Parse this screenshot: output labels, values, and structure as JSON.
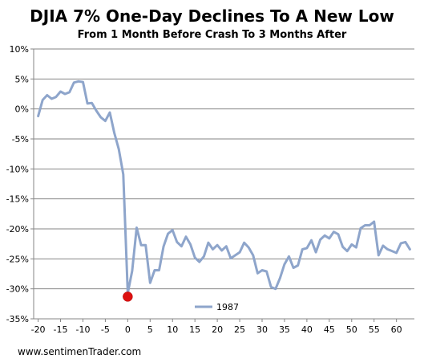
{
  "chart_data": {
    "type": "line",
    "title": "DJIA 7% One-Day Declines To A New Low",
    "subtitle": "From 1 Month Before Crash To 3 Months After",
    "xlabel": "",
    "ylabel": "",
    "xlim": [
      -21,
      64
    ],
    "ylim": [
      -35,
      10
    ],
    "x_ticks": [
      -20,
      -15,
      -10,
      -5,
      0,
      5,
      10,
      15,
      20,
      25,
      30,
      35,
      40,
      45,
      50,
      55,
      60
    ],
    "x_tick_labels": [
      "-20",
      "-15",
      "-10",
      "-5",
      "0",
      "5",
      "10",
      "15",
      "20",
      "25",
      "30",
      "35",
      "40",
      "45",
      "50",
      "55",
      "60"
    ],
    "y_ticks": [
      10,
      5,
      0,
      -5,
      -10,
      -15,
      -20,
      -25,
      -30,
      -35
    ],
    "y_tick_labels": [
      "10%",
      "5%",
      "0%",
      "-5%",
      "-10%",
      "-15%",
      "-20%",
      "-25%",
      "-30%",
      "-35%"
    ],
    "grid": "horizontal",
    "legend_position": "bottom-center",
    "series": [
      {
        "name": "1987",
        "color": "#8ea5cb",
        "x": [
          -20,
          -19,
          -18,
          -17,
          -16,
          -15,
          -14,
          -13,
          -12,
          -11,
          -10,
          -9,
          -8,
          -7,
          -6,
          -5,
          -4,
          -3,
          -2,
          -1,
          0,
          1,
          2,
          3,
          4,
          5,
          6,
          7,
          8,
          9,
          10,
          11,
          12,
          13,
          14,
          15,
          16,
          17,
          18,
          19,
          20,
          21,
          22,
          23,
          24,
          25,
          26,
          27,
          28,
          29,
          30,
          31,
          32,
          33,
          34,
          35,
          36,
          37,
          38,
          39,
          40,
          41,
          42,
          43,
          44,
          45,
          46,
          47,
          48,
          49,
          50,
          51,
          52,
          53,
          54,
          55,
          56,
          57,
          58,
          59,
          60,
          61,
          62,
          63
        ],
        "y": [
          -1.2,
          1.5,
          2.3,
          1.7,
          2.0,
          2.9,
          2.5,
          2.8,
          4.4,
          4.6,
          4.5,
          0.9,
          1.0,
          -0.3,
          -1.4,
          -2.0,
          -0.6,
          -4.0,
          -6.7,
          -10.9,
          -30.7,
          -27.0,
          -19.8,
          -22.7,
          -22.7,
          -29.0,
          -26.9,
          -26.9,
          -22.9,
          -20.8,
          -20.2,
          -22.2,
          -22.9,
          -21.3,
          -22.6,
          -24.8,
          -25.5,
          -24.6,
          -22.3,
          -23.4,
          -22.7,
          -23.6,
          -22.9,
          -24.9,
          -24.4,
          -23.9,
          -22.3,
          -23.1,
          -24.4,
          -27.4,
          -26.9,
          -27.1,
          -29.7,
          -30.0,
          -28.2,
          -25.9,
          -24.6,
          -26.5,
          -26.1,
          -23.4,
          -23.2,
          -21.9,
          -23.9,
          -21.8,
          -21.1,
          -21.6,
          -20.5,
          -20.9,
          -23.0,
          -23.7,
          -22.6,
          -23.1,
          -19.9,
          -19.4,
          -19.4,
          -18.8,
          -24.4,
          -22.8,
          -23.4,
          -23.7,
          -24.0,
          -22.4,
          -22.2,
          -23.4
        ]
      }
    ],
    "annotations": [
      {
        "type": "marker",
        "x": 0,
        "y": -31.3,
        "color": "#dd1111"
      }
    ]
  },
  "watermark": "www.sentimenTrader.com"
}
